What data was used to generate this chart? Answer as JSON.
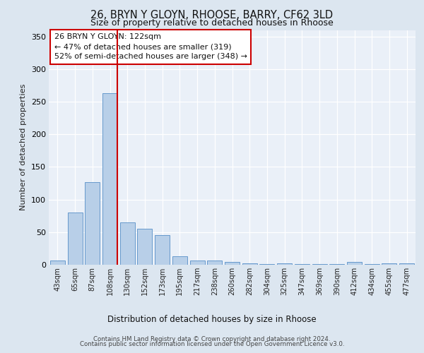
{
  "title_line1": "26, BRYN Y GLOYN, RHOOSE, BARRY, CF62 3LD",
  "title_line2": "Size of property relative to detached houses in Rhoose",
  "xlabel": "Distribution of detached houses by size in Rhoose",
  "ylabel": "Number of detached properties",
  "categories": [
    "43sqm",
    "65sqm",
    "87sqm",
    "108sqm",
    "130sqm",
    "152sqm",
    "173sqm",
    "195sqm",
    "217sqm",
    "238sqm",
    "260sqm",
    "282sqm",
    "304sqm",
    "325sqm",
    "347sqm",
    "369sqm",
    "390sqm",
    "412sqm",
    "434sqm",
    "455sqm",
    "477sqm"
  ],
  "values": [
    7,
    80,
    127,
    263,
    65,
    55,
    45,
    13,
    7,
    6,
    4,
    2,
    1,
    2,
    1,
    1,
    1,
    4,
    1,
    2,
    2
  ],
  "bar_color": "#b8cfe8",
  "bar_edge_color": "#6699cc",
  "vline_color": "#cc0000",
  "annotation_line1": "26 BRYN Y GLOYN: 122sqm",
  "annotation_line2": "← 47% of detached houses are smaller (319)",
  "annotation_line3": "52% of semi-detached houses are larger (348) →",
  "annotation_box_color": "#cc0000",
  "annotation_bg": "#ffffff",
  "ylim": [
    0,
    360
  ],
  "yticks": [
    0,
    50,
    100,
    150,
    200,
    250,
    300,
    350
  ],
  "footer_line1": "Contains HM Land Registry data © Crown copyright and database right 2024.",
  "footer_line2": "Contains public sector information licensed under the Open Government Licence v3.0.",
  "background_color": "#dce6f0",
  "plot_bg_color": "#eaf0f8"
}
